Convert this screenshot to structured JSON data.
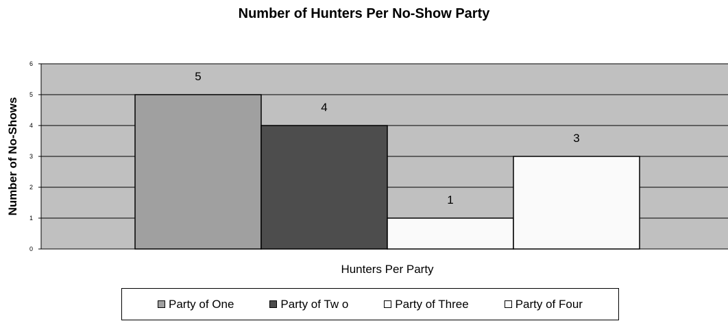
{
  "chart_data": {
    "type": "bar",
    "title": "Number of Hunters Per No-Show Party",
    "xlabel": "Hunters Per Party",
    "ylabel": "Number of No-Shows",
    "ylim": [
      0,
      6
    ],
    "yticks": [
      0,
      1,
      2,
      3,
      4,
      5,
      6
    ],
    "plot_background": "#c0c0c0",
    "grid": true,
    "legend_position": "bottom",
    "series": [
      {
        "name": "Party of One",
        "value": 5,
        "label": "5",
        "color": "#a0a0a0"
      },
      {
        "name": "Party of Two",
        "legend_text": "Party of Tw o",
        "value": 4,
        "label": "4",
        "color": "#4d4d4d"
      },
      {
        "name": "Party of Three",
        "value": 1,
        "label": "1",
        "color": "#fafafa"
      },
      {
        "name": "Party of Four",
        "value": 3,
        "label": "3",
        "color": "#fafafa"
      }
    ]
  }
}
